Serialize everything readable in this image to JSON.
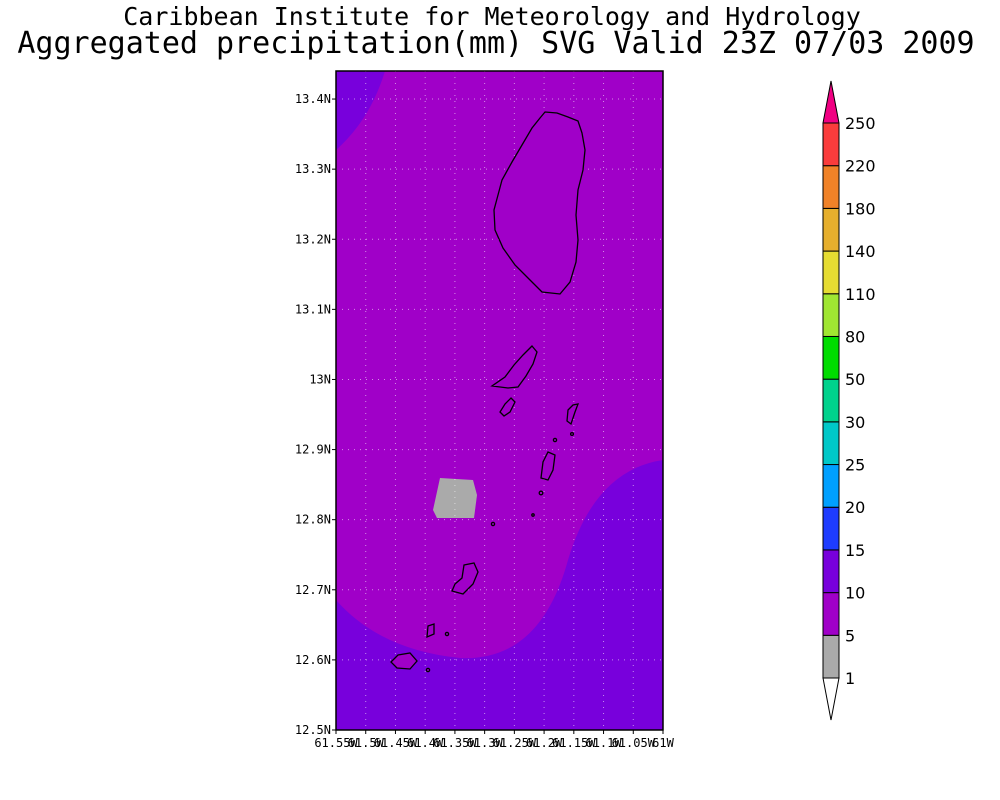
{
  "header": {
    "title": "Caribbean Institute for Meteorology and Hydrology",
    "subtitle": "Aggregated precipitation(mm) SVG Valid 23Z 07/03 2009"
  },
  "map": {
    "lat_range": [
      12.5,
      13.44
    ],
    "lon_range": [
      -61.55,
      -61.0
    ],
    "lat_ticks": [
      "13.4N",
      "13.3N",
      "13.2N",
      "13.1N",
      "13N",
      "12.9N",
      "12.8N",
      "12.7N",
      "12.6N",
      "12.5N"
    ],
    "lon_ticks": [
      "61.55W",
      "61.5W",
      "61.45W",
      "61.4W",
      "61.35W",
      "61.3W",
      "61.25W",
      "61.2W",
      "61.15W",
      "61.1W",
      "61.05W",
      "61W"
    ],
    "grid": true,
    "regions": [
      {
        "name": "5-10 mm band",
        "color": "#a000c8"
      },
      {
        "name": "10-15 mm band",
        "color": "#7800dc"
      },
      {
        "name": "1-5 mm patch",
        "color": "#aaaaaa"
      }
    ]
  },
  "colorbar": {
    "levels": [
      "1",
      "5",
      "10",
      "15",
      "20",
      "25",
      "30",
      "50",
      "80",
      "110",
      "140",
      "180",
      "220",
      "250"
    ],
    "colors": [
      "#aaaaaa",
      "#a000c8",
      "#7800dc",
      "#1e3cff",
      "#00a0ff",
      "#00c8c8",
      "#00d28c",
      "#00dc00",
      "#a0e632",
      "#e6dc32",
      "#e6af2d",
      "#f08228",
      "#fa3c3c",
      "#f00082"
    ],
    "under_color": "#ffffff"
  }
}
